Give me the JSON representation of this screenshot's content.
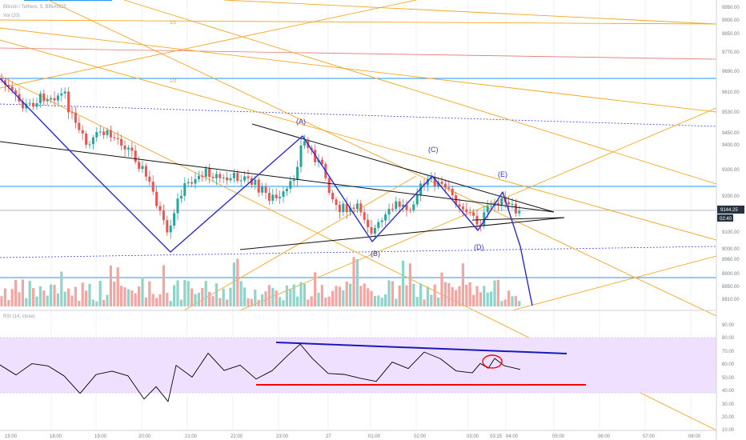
{
  "header": {
    "symbol_line": "Bitcoin / Tethers, 5, BINANCE",
    "volume_label": "Vol (20)",
    "rsi_label": "RSI (14, close)"
  },
  "fib_labels": [
    "1/1",
    "1/2"
  ],
  "wave_labels": [
    "(A)",
    "(B)",
    "(C)",
    "(D)",
    "(E)"
  ],
  "price_axis": [
    "9950.00",
    "9900.00",
    "9850.00",
    "9770.00",
    "9690.00",
    "9610.00",
    "9530.00",
    "9450.00",
    "9400.00",
    "9300.00",
    "9200.00",
    "9144.25",
    "9100.00",
    "9000.00",
    "8960.00",
    "8900.00",
    "8850.00",
    "8810.00"
  ],
  "current_price": "9144.25",
  "countdown": "02:40",
  "rsi_axis": [
    "90.00",
    "80.00",
    "70.00",
    "60.00",
    "50.00",
    "40.00",
    "30.00",
    "20.00",
    "10.00"
  ],
  "time_axis": [
    "15:00",
    "18:00",
    "19:00",
    "20:00",
    "21:00",
    "22:00",
    "23:00",
    "27",
    "01:00",
    "02:00",
    "03:00",
    "03:15",
    "04:00",
    "05:00",
    "06:00",
    "07:00",
    "08:00"
  ],
  "colors": {
    "up": "#26a69a",
    "down": "#ef5350",
    "wave": "#2b2bd6",
    "trend": "#111111",
    "fib": "#f5a623",
    "hline": "#2196f3",
    "rsi_band": "#efe0ff",
    "rsi_top_line": "#1a1ab8",
    "rsi_bottom_line": "#ff0000"
  }
}
